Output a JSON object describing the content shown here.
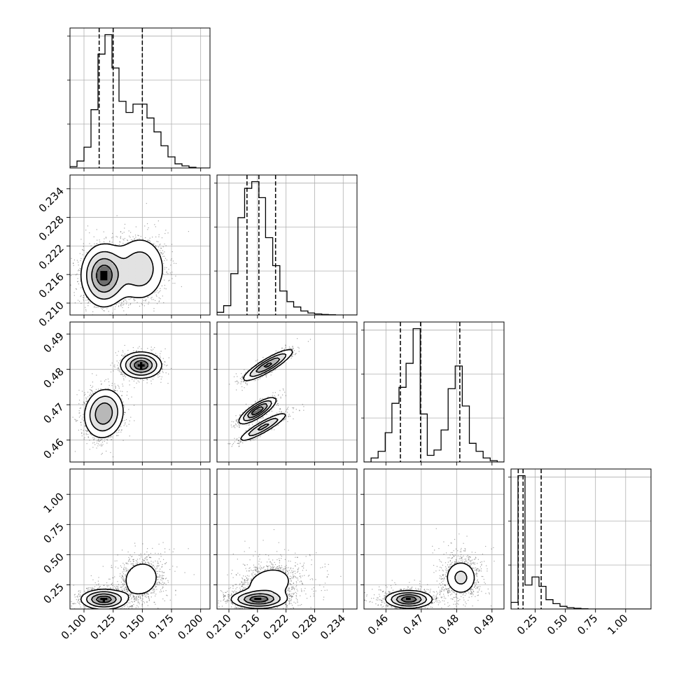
{
  "chart_data": {
    "type": "corner",
    "grid": true,
    "colors": {
      "line": "#000000",
      "grid": "#b0b0b0",
      "scatter": "#000000"
    },
    "parameters": [
      {
        "id": "p1",
        "range": [
          0.088,
          0.208
        ],
        "ticks": [
          0.1,
          0.125,
          0.15,
          0.175,
          0.2
        ],
        "tick_labels": [
          "0.100",
          "0.125",
          "0.150",
          "0.175",
          "0.200"
        ],
        "quantiles": [
          0.113,
          0.125,
          0.15
        ]
      },
      {
        "id": "p2",
        "range": [
          0.2075,
          0.2369
        ],
        "ticks": [
          0.21,
          0.216,
          0.222,
          0.228,
          0.234
        ],
        "tick_labels": [
          "0.210",
          "0.216",
          "0.222",
          "0.228",
          "0.234"
        ],
        "quantiles": [
          0.2138,
          0.2163,
          0.2198
        ]
      },
      {
        "id": "p3",
        "range": [
          0.4538,
          0.4934
        ],
        "ticks": [
          0.46,
          0.47,
          0.48,
          0.49
        ],
        "tick_labels": [
          "0.46",
          "0.47",
          "0.48",
          "0.49"
        ],
        "quantiles": [
          0.4641,
          0.4698,
          0.4809
        ]
      },
      {
        "id": "p4",
        "range": [
          0.05,
          1.21
        ],
        "ticks": [
          0.25,
          0.5,
          0.75,
          1.0
        ],
        "tick_labels": [
          "0.25",
          "0.50",
          "0.75",
          "1.00"
        ],
        "quantiles": [
          0.11,
          0.15,
          0.3
        ]
      }
    ],
    "histograms": [
      {
        "param": "p1",
        "bin_edges": [
          0.088,
          0.094,
          0.1,
          0.106,
          0.112,
          0.118,
          0.124,
          0.13,
          0.136,
          0.142,
          0.148,
          0.154,
          0.16,
          0.166,
          0.172,
          0.178,
          0.184,
          0.19,
          0.196,
          0.202,
          0.208
        ],
        "counts": [
          0.01,
          0.05,
          0.15,
          0.42,
          0.82,
          0.96,
          0.72,
          0.48,
          0.4,
          0.46,
          0.46,
          0.36,
          0.26,
          0.16,
          0.08,
          0.03,
          0.015,
          0.005,
          0.0,
          0.0
        ]
      },
      {
        "param": "p2",
        "bin_edges": [
          0.2075,
          0.2089,
          0.2104,
          0.2119,
          0.2133,
          0.2148,
          0.2163,
          0.2177,
          0.2192,
          0.2207,
          0.2222,
          0.2236,
          0.2251,
          0.2266,
          0.228,
          0.2295,
          0.2309,
          0.2324,
          0.2339,
          0.2354,
          0.2369
        ],
        "counts": [
          0.02,
          0.07,
          0.31,
          0.73,
          0.95,
          1.0,
          0.88,
          0.58,
          0.37,
          0.18,
          0.1,
          0.06,
          0.03,
          0.015,
          0.008,
          0.004,
          0.002,
          0.0,
          0.0,
          0.0
        ]
      },
      {
        "param": "p3",
        "bin_edges": [
          0.4538,
          0.4558,
          0.4578,
          0.4598,
          0.4617,
          0.4637,
          0.4657,
          0.4677,
          0.4697,
          0.4717,
          0.4736,
          0.4756,
          0.4776,
          0.4796,
          0.4816,
          0.4836,
          0.4855,
          0.4875,
          0.4895,
          0.4915,
          0.4934
        ],
        "counts": [
          0.0,
          0.03,
          0.08,
          0.22,
          0.44,
          0.56,
          0.74,
          1.0,
          0.36,
          0.05,
          0.09,
          0.24,
          0.55,
          0.72,
          0.42,
          0.14,
          0.08,
          0.03,
          0.01,
          0.0
        ]
      },
      {
        "param": "p4",
        "bin_edges": [
          0.05,
          0.108,
          0.166,
          0.224,
          0.282,
          0.34,
          0.398,
          0.456,
          0.514,
          0.572,
          0.63,
          0.688,
          0.746,
          0.804,
          0.862,
          0.92,
          0.978,
          1.036,
          1.094,
          1.152,
          1.21
        ],
        "counts": [
          0.05,
          1.0,
          0.18,
          0.24,
          0.17,
          0.07,
          0.04,
          0.02,
          0.01,
          0.005,
          0.002,
          0.0,
          0.0,
          0.0,
          0.0,
          0.0,
          0.0,
          0.0,
          0.0,
          0.0
        ]
      }
    ],
    "pairs": [
      {
        "x": "p1",
        "y": "p2",
        "modes": [
          {
            "cx": 0.117,
            "cy": 0.2158,
            "sx": 0.0095,
            "sy": 0.0032,
            "w": 0.6,
            "rho": 0.0
          },
          {
            "cx": 0.148,
            "cy": 0.2172,
            "sx": 0.0115,
            "sy": 0.0036,
            "w": 0.4,
            "rho": 0.0
          }
        ]
      },
      {
        "x": "p1",
        "y": "p3",
        "modes": [
          {
            "cx": 0.117,
            "cy": 0.4675,
            "sx": 0.0085,
            "sy": 0.0035,
            "w": 0.6,
            "rho": 0.1
          },
          {
            "cx": 0.149,
            "cy": 0.4812,
            "sx": 0.0085,
            "sy": 0.0018,
            "w": 0.4,
            "rho": 0.0
          }
        ]
      },
      {
        "x": "p2",
        "y": "p3",
        "modes": [
          {
            "cx": 0.216,
            "cy": 0.4683,
            "sx": 0.0019,
            "sy": 0.0018,
            "w": 0.35,
            "rho": 0.8
          },
          {
            "cx": 0.2172,
            "cy": 0.4637,
            "sx": 0.0026,
            "sy": 0.0021,
            "w": 0.25,
            "rho": 0.9
          },
          {
            "cx": 0.2182,
            "cy": 0.4812,
            "sx": 0.0026,
            "sy": 0.0022,
            "w": 0.4,
            "rho": 0.88
          }
        ]
      },
      {
        "x": "p1",
        "y": "p4",
        "modes": [
          {
            "cx": 0.117,
            "cy": 0.13,
            "sx": 0.0095,
            "sy": 0.04,
            "w": 0.6,
            "rho": 0.0
          },
          {
            "cx": 0.149,
            "cy": 0.3,
            "sx": 0.0095,
            "sy": 0.09,
            "w": 0.4,
            "rho": 0.1
          }
        ]
      },
      {
        "x": "p2",
        "y": "p4",
        "modes": [
          {
            "cx": 0.2162,
            "cy": 0.13,
            "sx": 0.0028,
            "sy": 0.035,
            "w": 0.55,
            "rho": 0.0
          },
          {
            "cx": 0.2185,
            "cy": 0.26,
            "sx": 0.0032,
            "sy": 0.09,
            "w": 0.45,
            "rho": 0.2
          }
        ]
      },
      {
        "x": "p3",
        "y": "p4",
        "modes": [
          {
            "cx": 0.4665,
            "cy": 0.13,
            "sx": 0.0032,
            "sy": 0.035,
            "w": 0.6,
            "rho": 0.0
          },
          {
            "cx": 0.4812,
            "cy": 0.31,
            "sx": 0.0025,
            "sy": 0.08,
            "w": 0.4,
            "rho": 0.0
          }
        ]
      }
    ]
  }
}
